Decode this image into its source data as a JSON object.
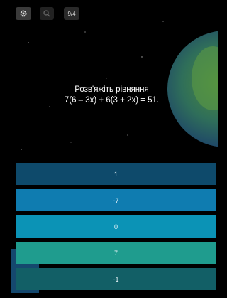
{
  "toolbar": {
    "counter": "9/4"
  },
  "question": {
    "title": "Розв'яжіть рівняння",
    "equation": "7(6 – 3x) + 6(3 + 2x) = 51."
  },
  "answers": [
    "1",
    "-7",
    "0",
    "7",
    "-1"
  ]
}
